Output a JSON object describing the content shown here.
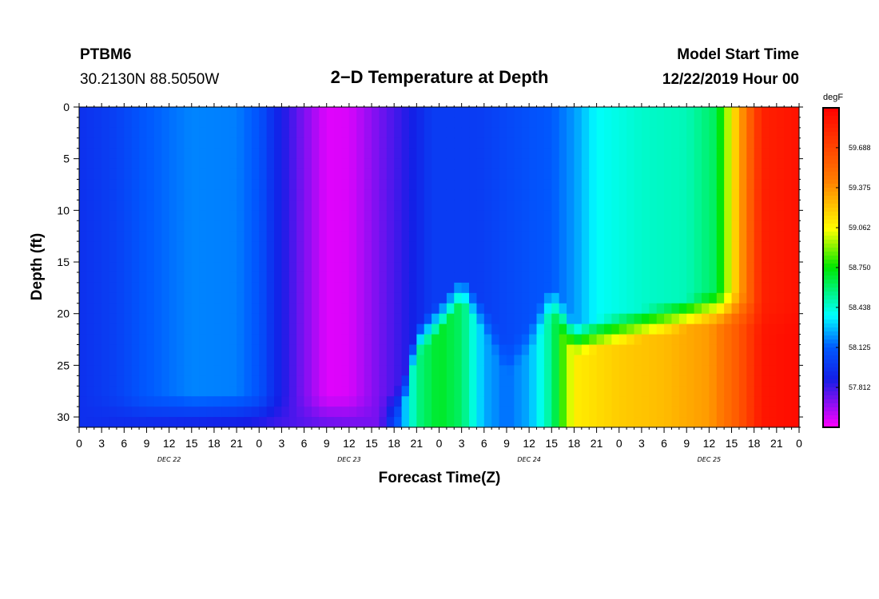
{
  "header": {
    "station": "PTBM6",
    "location": "30.2130N 88.5050W",
    "title": "2−D Temperature at Depth",
    "start_label": "Model Start Time",
    "start_value": "12/22/2019 Hour 00"
  },
  "chart_data": {
    "type": "heatmap",
    "title": "2−D Temperature at Depth",
    "xlabel": "Forecast Time(Z)",
    "ylabel": "Depth (ft)",
    "units": "degF",
    "x_range_hours": [
      0,
      96
    ],
    "y_range_ft": [
      0,
      31
    ],
    "x_tick_labels": [
      "0",
      "3",
      "6",
      "9",
      "12",
      "15",
      "18",
      "21",
      "0",
      "3",
      "6",
      "9",
      "12",
      "15",
      "18",
      "21",
      "0",
      "3",
      "6",
      "9",
      "12",
      "15",
      "18",
      "21",
      "0",
      "3",
      "6",
      "9",
      "12",
      "15",
      "18",
      "21",
      "0"
    ],
    "day_labels": [
      "DEC 22",
      "DEC 23",
      "DEC 24",
      "DEC 25"
    ],
    "y_ticks": [
      0,
      5,
      10,
      15,
      20,
      25,
      30
    ],
    "colorbar": {
      "ticks": [
        "59.688",
        "59.375",
        "59.062",
        "58.750",
        "58.438",
        "58.125",
        "57.812"
      ],
      "min": 57.5,
      "max": 60.0
    },
    "surface_temps_by_time": [
      {
        "h": 0,
        "t": 57.95
      },
      {
        "h": 5,
        "t": 58.02
      },
      {
        "h": 9,
        "t": 58.12
      },
      {
        "h": 15,
        "t": 58.19
      },
      {
        "h": 21,
        "t": 58.18
      },
      {
        "h": 24,
        "t": 58.1
      },
      {
        "h": 26,
        "t": 57.93
      },
      {
        "h": 29,
        "t": 57.76
      },
      {
        "h": 33,
        "t": 57.55
      },
      {
        "h": 36,
        "t": 57.56
      },
      {
        "h": 40,
        "t": 57.72
      },
      {
        "h": 45,
        "t": 57.9
      },
      {
        "h": 47,
        "t": 58.0
      },
      {
        "h": 53,
        "t": 58.0
      },
      {
        "h": 58,
        "t": 58.06
      },
      {
        "h": 63,
        "t": 58.12
      },
      {
        "h": 66,
        "t": 58.22
      },
      {
        "h": 69,
        "t": 58.38
      },
      {
        "h": 75,
        "t": 58.45
      },
      {
        "h": 81,
        "t": 58.48
      },
      {
        "h": 85,
        "t": 58.62
      },
      {
        "h": 88,
        "t": 59.3
      },
      {
        "h": 91,
        "t": 59.85
      },
      {
        "h": 96,
        "t": 59.92
      }
    ],
    "bottom_layer": [
      {
        "h": 0,
        "t": 57.95,
        "top_ft": 31
      },
      {
        "h": 40,
        "t": 57.72,
        "top_ft": 31
      },
      {
        "h": 43,
        "t": 58.2,
        "top_ft": 30
      },
      {
        "h": 45,
        "t": 58.55,
        "top_ft": 24
      },
      {
        "h": 48,
        "t": 58.7,
        "top_ft": 22
      },
      {
        "h": 51,
        "t": 58.6,
        "top_ft": 19
      },
      {
        "h": 54,
        "t": 58.25,
        "top_ft": 22
      },
      {
        "h": 57,
        "t": 58.15,
        "top_ft": 26
      },
      {
        "h": 60,
        "t": 58.25,
        "top_ft": 24
      },
      {
        "h": 63,
        "t": 58.55,
        "top_ft": 20
      },
      {
        "h": 66,
        "t": 59.1,
        "top_ft": 24
      },
      {
        "h": 72,
        "t": 59.2,
        "top_ft": 23
      },
      {
        "h": 78,
        "t": 59.25,
        "top_ft": 22
      },
      {
        "h": 84,
        "t": 59.35,
        "top_ft": 21
      },
      {
        "h": 88,
        "t": 59.6,
        "top_ft": 21
      },
      {
        "h": 91,
        "t": 59.9,
        "top_ft": 22
      },
      {
        "h": 96,
        "t": 59.95,
        "top_ft": 22
      }
    ]
  }
}
